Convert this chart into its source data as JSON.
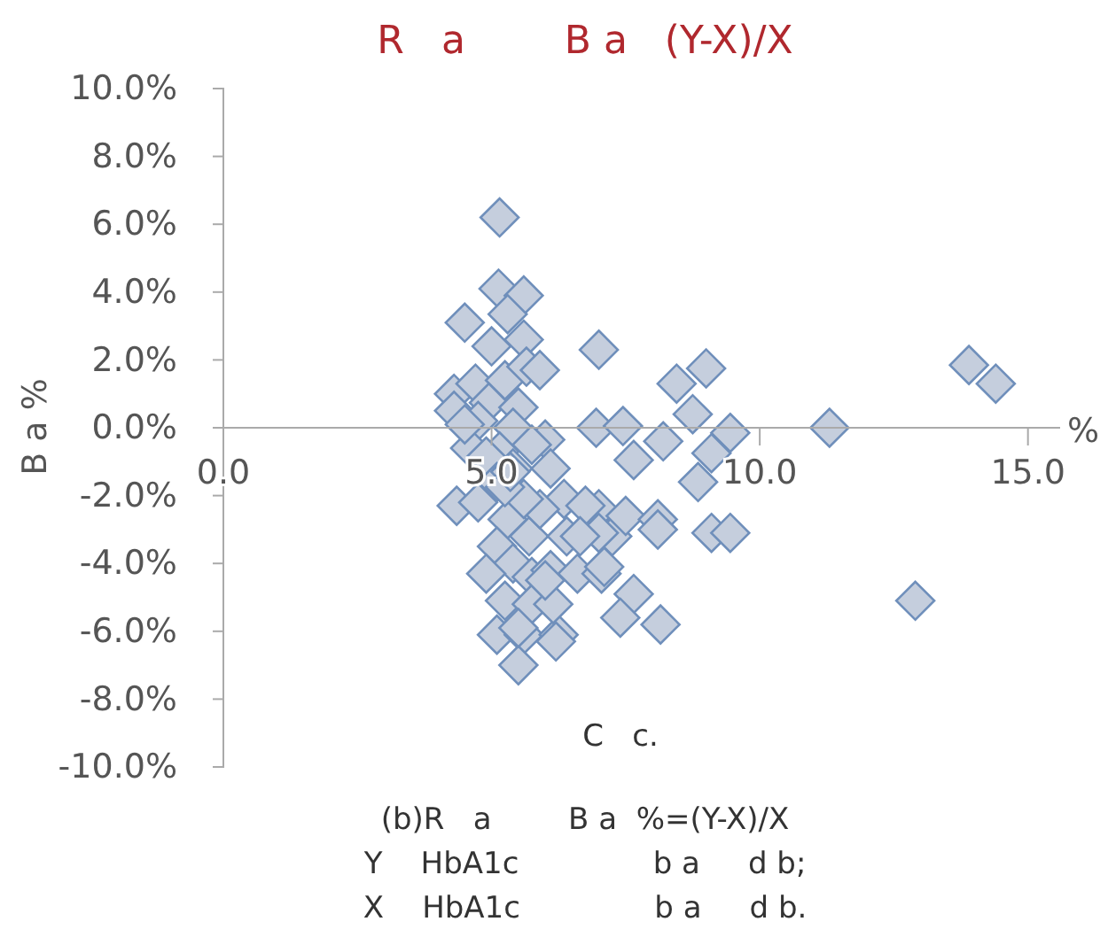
{
  "chart_data": {
    "type": "scatter",
    "title": "R   a        B a   (Y-X)/X",
    "xlabel": "C   c.",
    "ylabel": "B a %",
    "annotations": [
      "%",
      "(b)R   a        B a  %=(Y-X)/X",
      "Y    HbA1c              b a     d b;",
      "X    HbA1c              b a     d b."
    ],
    "marker": "diamond",
    "grid": false,
    "xlim": [
      0,
      15.6
    ],
    "xticks": [
      {
        "value": 0,
        "label": "0.0"
      },
      {
        "value": 5,
        "label": "5.0"
      },
      {
        "value": 10,
        "label": "10.0"
      },
      {
        "value": 15,
        "label": "15.0"
      }
    ],
    "ylim": [
      -10,
      10
    ],
    "yticks": [
      {
        "value": -10,
        "label": "-10.0%"
      },
      {
        "value": -8,
        "label": "-8.0%"
      },
      {
        "value": -6,
        "label": "-6.0%"
      },
      {
        "value": -4,
        "label": "-4.0%"
      },
      {
        "value": -2,
        "label": "-2.0%"
      },
      {
        "value": 0,
        "label": "0.0%"
      },
      {
        "value": 2,
        "label": "2.0%"
      },
      {
        "value": 4,
        "label": "4.0%"
      },
      {
        "value": 6,
        "label": "6.0%"
      },
      {
        "value": 8,
        "label": "8.0%"
      },
      {
        "value": 10,
        "label": "10.0%"
      }
    ],
    "series": [
      {
        "color": "#c5cedd",
        "x": [
          5.15,
          5.13,
          5.6,
          4.5,
          5.3,
          5.0,
          5.6,
          7.0,
          4.3,
          4.7,
          5.25,
          5.65,
          5.9,
          4.95,
          5.5,
          4.3,
          4.75,
          5.4,
          6.0,
          4.6,
          5.15,
          5.75,
          4.35,
          4.9,
          5.1,
          5.4,
          6.1,
          4.75,
          5.3,
          5.7,
          5.1,
          5.4,
          4.9,
          5.75,
          6.1,
          5.25,
          5.75,
          5.1,
          5.6,
          5.5,
          6.25,
          6.35,
          6.4,
          7.0,
          7.25,
          6.6,
          7.05,
          8.45,
          9.0,
          8.75,
          6.95,
          7.45,
          8.2,
          7.65,
          9.45,
          9.1,
          8.85,
          9.1,
          9.45,
          7.5,
          8.1,
          8.1,
          6.75,
          7.0,
          6.65,
          7.1,
          7.65,
          7.4,
          8.15,
          6.2,
          11.3,
          13.9,
          14.4,
          12.9,
          4.5,
          5.9,
          5.6,
          5.25,
          6.15,
          6.0,
          5.5,
          5.35
        ],
        "values": [
          6.2,
          4.1,
          3.9,
          3.1,
          3.35,
          2.4,
          2.6,
          2.3,
          1.0,
          1.3,
          1.4,
          1.8,
          1.7,
          0.74,
          0.6,
          0.5,
          0.2,
          0,
          -0.35,
          -0.6,
          -0.7,
          -0.5,
          -2.3,
          -0.85,
          -1.6,
          -1.2,
          -1.2,
          -2.2,
          -2.7,
          -3.2,
          -3.5,
          -4.0,
          -4.3,
          -4.4,
          -4.2,
          -5.1,
          -5.2,
          -6.1,
          -6.1,
          -7.0,
          -6.1,
          -2.1,
          -3.2,
          -2.4,
          -3.2,
          -4.3,
          -4.3,
          1.3,
          1.75,
          0.4,
          0,
          0.05,
          -0.4,
          -0.95,
          -0.15,
          -0.75,
          -1.6,
          -3.1,
          -3.1,
          -2.6,
          -2.7,
          -3.0,
          -2.3,
          -3.1,
          -3.2,
          -4.1,
          -4.9,
          -5.6,
          -5.8,
          -6.3,
          0,
          1.85,
          1.3,
          -5.1,
          0.1,
          -2.4,
          -2.1,
          -1.75,
          -5.2,
          -4.5,
          -5.9,
          -1.3
        ]
      }
    ]
  }
}
